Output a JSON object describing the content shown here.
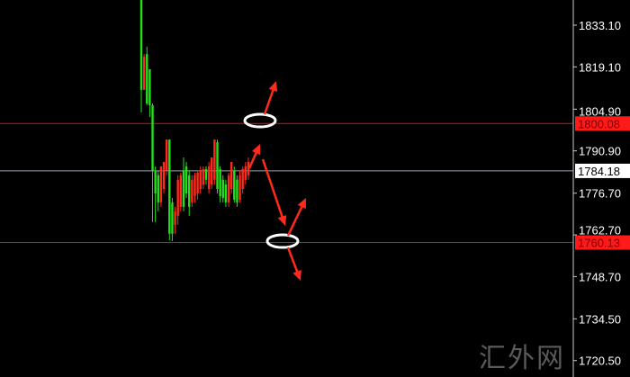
{
  "chart_data": {
    "type": "candlestick",
    "ylim": [
      1717.0,
      1841.6
    ],
    "y_ticks": [
      "1833.10",
      "1819.10",
      "1804.90",
      "1790.90",
      "1776.70",
      "1762.70",
      "1748.70",
      "1734.50",
      "1720.50"
    ],
    "colors": {
      "up": "#ff2a1a",
      "down": "#22e01a",
      "level": "#e01010",
      "current": "#9aa4b8",
      "annotation": "#ff2a1a"
    },
    "candles": [
      [
        1841.6,
        1841.6,
        1803.8,
        1811.4
      ],
      [
        1811.4,
        1823.4,
        1811.4,
        1822.5
      ],
      [
        1823.4,
        1825.9,
        1806.2,
        1806.8
      ],
      [
        1818.3,
        1818.3,
        1802.3,
        1806.2
      ],
      [
        1806.2,
        1806.8,
        1767.0,
        1784.2
      ],
      [
        1784.2,
        1785.7,
        1767.0,
        1776.6
      ],
      [
        1782.7,
        1784.2,
        1770.6,
        1773.6
      ],
      [
        1773.6,
        1785.7,
        1772.1,
        1785.7
      ],
      [
        1778.1,
        1787.2,
        1776.6,
        1787.2
      ],
      [
        1784.2,
        1794.7,
        1782.7,
        1794.7
      ],
      [
        1794.7,
        1794.7,
        1760.9,
        1763.1
      ],
      [
        1773.6,
        1775.1,
        1760.6,
        1763.1
      ],
      [
        1766.1,
        1772.1,
        1763.1,
        1770.6
      ],
      [
        1769.1,
        1782.7,
        1766.1,
        1781.2
      ],
      [
        1772.1,
        1783.6,
        1770.6,
        1782.7
      ],
      [
        1784.2,
        1788.7,
        1770.6,
        1772.1
      ],
      [
        1785.7,
        1787.2,
        1775.1,
        1776.6
      ],
      [
        1782.7,
        1784.2,
        1769.1,
        1772.1
      ],
      [
        1773.6,
        1782.7,
        1772.1,
        1781.2
      ],
      [
        1775.7,
        1783.6,
        1773.6,
        1782.7
      ],
      [
        1776.6,
        1784.2,
        1774.5,
        1783.6
      ],
      [
        1778.1,
        1785.7,
        1776.6,
        1784.2
      ],
      [
        1779.6,
        1785.7,
        1778.1,
        1784.8
      ],
      [
        1784.8,
        1785.7,
        1779.6,
        1781.2
      ],
      [
        1778.1,
        1787.2,
        1776.6,
        1785.7
      ],
      [
        1779.6,
        1788.7,
        1778.1,
        1788.7
      ],
      [
        1781.2,
        1794.7,
        1779.6,
        1794.7
      ],
      [
        1793.8,
        1794.7,
        1776.6,
        1778.1
      ],
      [
        1784.8,
        1785.7,
        1773.6,
        1775.7
      ],
      [
        1781.2,
        1782.7,
        1773.6,
        1775.1
      ],
      [
        1779.6,
        1781.2,
        1772.1,
        1773.6
      ],
      [
        1773.6,
        1783.6,
        1772.1,
        1782.7
      ],
      [
        1778.1,
        1787.2,
        1776.6,
        1787.2
      ],
      [
        1784.2,
        1785.7,
        1773.6,
        1774.5
      ],
      [
        1781.2,
        1782.7,
        1772.1,
        1773.6
      ],
      [
        1774.5,
        1784.2,
        1773.6,
        1782.7
      ],
      [
        1778.1,
        1785.7,
        1776.6,
        1784.8
      ],
      [
        1781.2,
        1787.2,
        1779.6,
        1785.7
      ],
      [
        1782.7,
        1788.7,
        1781.2,
        1787.2
      ]
    ],
    "candle_fields": [
      "open",
      "high",
      "low",
      "close"
    ],
    "levels": [
      {
        "value": 1800.08,
        "label": "1800.08",
        "kind": "resistance"
      },
      {
        "value": 1760.13,
        "label": "1760.13",
        "kind": "support"
      }
    ],
    "current_price": {
      "value": 1784.18,
      "label": "1784.18"
    }
  },
  "watermark": "汇外网"
}
